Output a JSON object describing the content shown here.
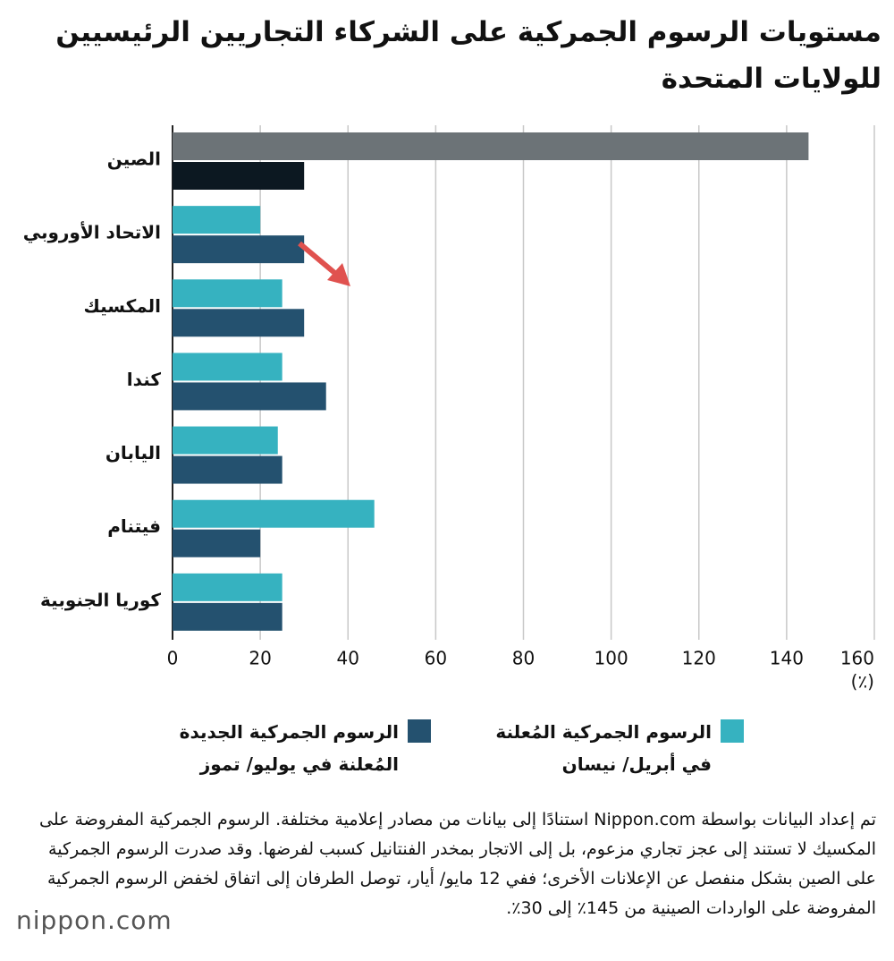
{
  "chart_data": {
    "type": "bar",
    "orientation": "horizontal",
    "title": "مستويات الرسوم الجمركية على الشركاء التجاريين الرئيسيين للولايات المتحدة",
    "categories": [
      "الصين",
      "الاتحاد الأوروبي",
      "المكسيك",
      "كندا",
      "اليابان",
      "فيتنام",
      "كوريا الجنوبية"
    ],
    "series": [
      {
        "name": "الرسوم الجمركية المُعلنة في أبريل/ نيسان",
        "color": "#36b2c0",
        "colors": [
          "#6c7377",
          "#36b2c0",
          "#36b2c0",
          "#36b2c0",
          "#36b2c0",
          "#36b2c0",
          "#36b2c0"
        ],
        "values": [
          145,
          20,
          25,
          25,
          24,
          46,
          25
        ]
      },
      {
        "name": "الرسوم الجمركية الجديدة المُعلنة في يوليو/ تموز",
        "color": "#24516f",
        "colors": [
          "#0c1821",
          "#24516f",
          "#24516f",
          "#24516f",
          "#24516f",
          "#24516f",
          "#24516f"
        ],
        "values": [
          30,
          30,
          30,
          35,
          25,
          20,
          25
        ]
      }
    ],
    "xlim": [
      0,
      160
    ],
    "xticks": [
      0,
      20,
      40,
      60,
      80,
      100,
      120,
      140,
      160
    ],
    "grid": true,
    "x_unit": "(٪)",
    "note": "تم إعداد البيانات بواسطة Nippon.com استنادًا إلى بيانات من مصادر إعلامية مختلفة. الرسوم الجمركية المفروضة على المكسيك لا تستند إلى عجز تجاري مزعوم، بل إلى الاتجار بمخدر الفنتانيل كسبب لفرضها. وقد صدرت الرسوم الجمركية على الصين بشكل منفصل عن الإعلانات الأخرى؛ ففي 12 مايو/ أيار، توصل الطرفان إلى اتفاق لخفض الرسوم الجمركية المفروضة على الواردات الصينية من 145٪ إلى 30٪.",
    "logo": "nippon.com"
  }
}
